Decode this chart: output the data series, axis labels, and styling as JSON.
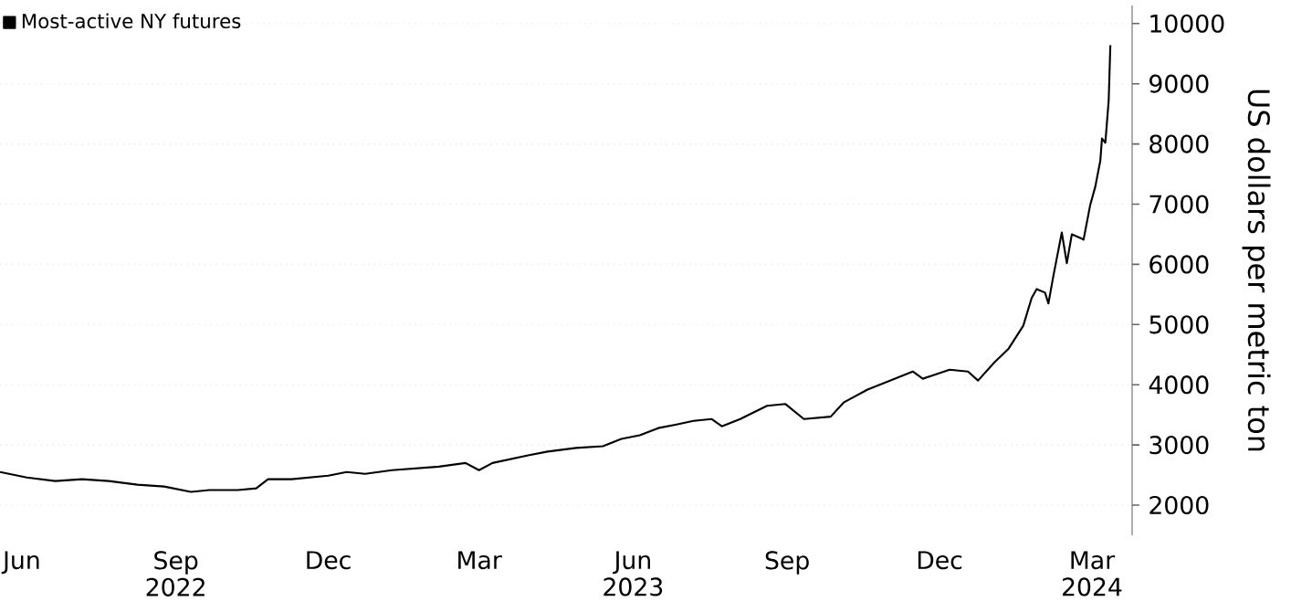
{
  "chart_data": {
    "type": "line",
    "ylabel": "US dollars per metric ton",
    "legend": "top left",
    "grid": "y",
    "line_style": "solid",
    "marker": "none",
    "xlim": [
      "2022-05-19",
      "2024-03-25"
    ],
    "ylim": [
      1500,
      10300
    ],
    "yticks": [
      2000,
      3000,
      4000,
      5000,
      6000,
      7000,
      8000,
      9000,
      10000
    ],
    "xticks": [
      {
        "value": "2022-06-01",
        "label": "Jun"
      },
      {
        "value": "2022-09-01",
        "label": "Sep 2022"
      },
      {
        "value": "2022-12-01",
        "label": "Dec"
      },
      {
        "value": "2023-03-01",
        "label": "Mar"
      },
      {
        "value": "2023-06-01",
        "label": "Jun 2023"
      },
      {
        "value": "2023-09-01",
        "label": "Sep"
      },
      {
        "value": "2023-12-01",
        "label": "Dec"
      },
      {
        "value": "2024-03-01",
        "label": "Mar 2024"
      }
    ],
    "x": [
      "2022-05-19",
      "2022-06-04",
      "2022-06-21",
      "2022-07-07",
      "2022-07-23",
      "2022-08-09",
      "2022-08-25",
      "2022-09-10",
      "2022-09-21",
      "2022-10-08",
      "2022-10-19",
      "2022-10-26",
      "2022-11-09",
      "2022-12-01",
      "2022-12-12",
      "2022-12-23",
      "2023-01-08",
      "2023-02-05",
      "2023-02-21",
      "2023-03-01",
      "2023-03-09",
      "2023-03-31",
      "2023-04-11",
      "2023-04-28",
      "2023-05-14",
      "2023-05-25",
      "2023-06-05",
      "2023-06-16",
      "2023-06-27",
      "2023-07-07",
      "2023-07-18",
      "2023-07-24",
      "2023-08-04",
      "2023-08-20",
      "2023-08-31",
      "2023-09-11",
      "2023-09-27",
      "2023-10-05",
      "2023-10-19",
      "2023-10-30",
      "2023-11-15",
      "2023-11-21",
      "2023-12-07",
      "2023-12-18",
      "2023-12-24",
      "2024-01-03",
      "2024-01-11",
      "2024-01-20",
      "2024-01-25",
      "2024-01-28",
      "2024-02-02",
      "2024-02-04",
      "2024-02-07",
      "2024-02-12",
      "2024-02-15",
      "2024-02-18",
      "2024-02-23",
      "2024-02-25",
      "2024-02-29",
      "2024-03-03",
      "2024-03-06",
      "2024-03-07",
      "2024-03-09",
      "2024-03-11",
      "2024-03-12"
    ],
    "series": [
      {
        "name": "Most-active NY futures",
        "color": "#000000",
        "values": [
          2550,
          2460,
          2400,
          2430,
          2400,
          2340,
          2310,
          2220,
          2250,
          2250,
          2280,
          2430,
          2430,
          2490,
          2550,
          2520,
          2580,
          2640,
          2700,
          2580,
          2700,
          2830,
          2890,
          2950,
          2980,
          3100,
          3160,
          3280,
          3340,
          3400,
          3430,
          3310,
          3430,
          3650,
          3680,
          3430,
          3470,
          3710,
          3920,
          4040,
          4220,
          4100,
          4250,
          4220,
          4070,
          4380,
          4590,
          4980,
          5440,
          5590,
          5530,
          5350,
          5810,
          6530,
          6020,
          6500,
          6440,
          6410,
          6990,
          7290,
          7720,
          8090,
          8020,
          8720,
          9640
        ]
      }
    ]
  }
}
